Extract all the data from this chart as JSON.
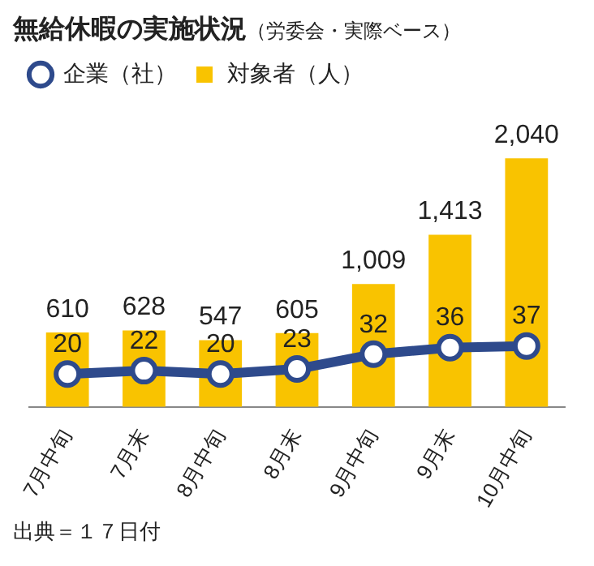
{
  "chart_data": {
    "type": "bar",
    "title": "無給休暇の実施状況",
    "subtitle": "（労委会・実際ベース）",
    "categories": [
      "7月中旬",
      "7月末",
      "8月中旬",
      "8月末",
      "9月中旬",
      "9月末",
      "10月中旬"
    ],
    "series": [
      {
        "name": "企業（社）",
        "type": "line",
        "axis": "y2",
        "color": "#2e4a8c",
        "values": [
          20,
          22,
          20,
          23,
          32,
          36,
          37
        ]
      },
      {
        "name": "対象者（人）",
        "color": "#f9c300",
        "values": [
          610,
          628,
          547,
          605,
          1009,
          1413,
          2040
        ],
        "value_labels": [
          "610",
          "628",
          "547",
          "605",
          "1,009",
          "1,413",
          "2,040"
        ]
      }
    ],
    "data_labels": true,
    "legend": "top left",
    "marker": "circle",
    "grid": false,
    "annotations": [
      "出典＝１７日付"
    ]
  }
}
